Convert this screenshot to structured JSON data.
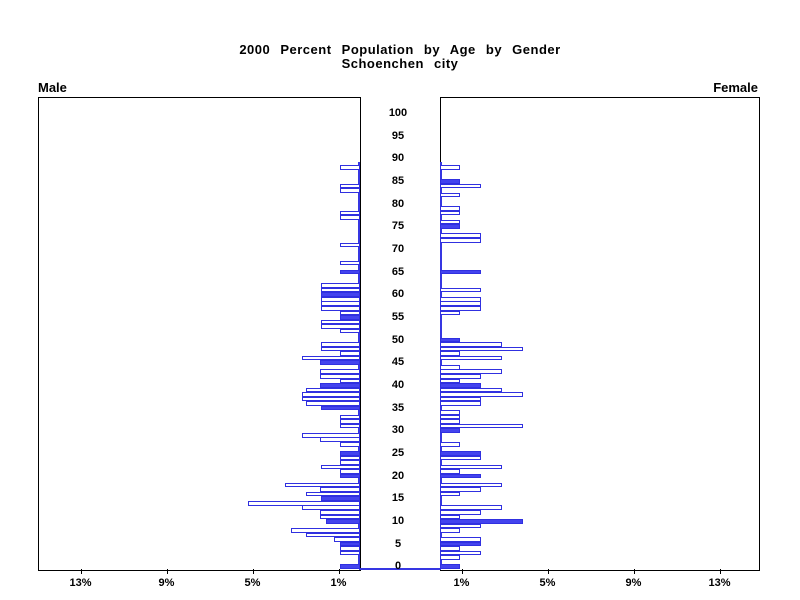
{
  "title": {
    "line1": "2000 Percent Population by Age by Gender",
    "line2": "Schoenchen city"
  },
  "panel_labels": {
    "male": "Male",
    "female": "Female"
  },
  "colors": {
    "bar_blue": "#4343ee",
    "bar_outline": "#3030e0",
    "axis": "#000000"
  },
  "chart_data": {
    "type": "bar",
    "subtype": "population-pyramid",
    "title": "2000 Percent Population by Age by Gender",
    "subtitle": "Schoenchen city",
    "age_axis": {
      "min": 0,
      "max": 100,
      "tick_step": 5
    },
    "pct_axis": {
      "ticks_pct": [
        1,
        5,
        9,
        13
      ],
      "tick_labels": [
        "1%",
        "5%",
        "9%",
        "13%"
      ],
      "max_pct": 15
    },
    "legend_note": "solid bars mark ages that are multiples of 5",
    "series": [
      {
        "name": "Male",
        "side": "left",
        "bars": [
          {
            "age": 0,
            "pct": 0.95,
            "filled": true
          },
          {
            "age": 3,
            "pct": 0.95,
            "filled": false
          },
          {
            "age": 4,
            "pct": 0.95,
            "filled": false
          },
          {
            "age": 5,
            "pct": 0.95,
            "filled": true
          },
          {
            "age": 6,
            "pct": 1.2,
            "filled": false
          },
          {
            "age": 7,
            "pct": 2.5,
            "filled": false
          },
          {
            "age": 8,
            "pct": 3.2,
            "filled": false
          },
          {
            "age": 10,
            "pct": 1.6,
            "filled": true
          },
          {
            "age": 11,
            "pct": 1.85,
            "filled": false
          },
          {
            "age": 12,
            "pct": 1.85,
            "filled": false
          },
          {
            "age": 13,
            "pct": 2.7,
            "filled": false
          },
          {
            "age": 14,
            "pct": 5.2,
            "filled": false
          },
          {
            "age": 15,
            "pct": 1.8,
            "filled": true
          },
          {
            "age": 16,
            "pct": 2.5,
            "filled": false
          },
          {
            "age": 17,
            "pct": 1.85,
            "filled": false
          },
          {
            "age": 18,
            "pct": 3.5,
            "filled": false
          },
          {
            "age": 20,
            "pct": 0.95,
            "filled": true
          },
          {
            "age": 21,
            "pct": 0.95,
            "filled": false
          },
          {
            "age": 22,
            "pct": 1.8,
            "filled": false
          },
          {
            "age": 23,
            "pct": 0.95,
            "filled": false
          },
          {
            "age": 24,
            "pct": 0.95,
            "filled": false
          },
          {
            "age": 25,
            "pct": 0.95,
            "filled": true
          },
          {
            "age": 27,
            "pct": 0.95,
            "filled": false
          },
          {
            "age": 28,
            "pct": 1.85,
            "filled": false
          },
          {
            "age": 29,
            "pct": 2.7,
            "filled": false
          },
          {
            "age": 31,
            "pct": 0.95,
            "filled": false
          },
          {
            "age": 32,
            "pct": 0.95,
            "filled": false
          },
          {
            "age": 33,
            "pct": 0.95,
            "filled": false
          },
          {
            "age": 35,
            "pct": 1.8,
            "filled": true
          },
          {
            "age": 36,
            "pct": 2.5,
            "filled": false
          },
          {
            "age": 37,
            "pct": 2.7,
            "filled": false
          },
          {
            "age": 38,
            "pct": 2.7,
            "filled": false
          },
          {
            "age": 39,
            "pct": 2.5,
            "filled": false
          },
          {
            "age": 40,
            "pct": 1.85,
            "filled": true
          },
          {
            "age": 41,
            "pct": 0.95,
            "filled": false
          },
          {
            "age": 42,
            "pct": 1.85,
            "filled": false
          },
          {
            "age": 43,
            "pct": 1.85,
            "filled": false
          },
          {
            "age": 45,
            "pct": 1.85,
            "filled": true
          },
          {
            "age": 46,
            "pct": 2.7,
            "filled": false
          },
          {
            "age": 47,
            "pct": 0.95,
            "filled": false
          },
          {
            "age": 48,
            "pct": 1.8,
            "filled": false
          },
          {
            "age": 49,
            "pct": 1.8,
            "filled": false
          },
          {
            "age": 52,
            "pct": 0.95,
            "filled": false
          },
          {
            "age": 53,
            "pct": 1.8,
            "filled": false
          },
          {
            "age": 54,
            "pct": 1.8,
            "filled": false
          },
          {
            "age": 55,
            "pct": 0.95,
            "filled": true
          },
          {
            "age": 56,
            "pct": 0.95,
            "filled": false
          },
          {
            "age": 57,
            "pct": 1.8,
            "filled": false
          },
          {
            "age": 58,
            "pct": 1.8,
            "filled": false
          },
          {
            "age": 59,
            "pct": 1.8,
            "filled": false
          },
          {
            "age": 60,
            "pct": 1.8,
            "filled": true
          },
          {
            "age": 61,
            "pct": 1.8,
            "filled": false
          },
          {
            "age": 62,
            "pct": 1.8,
            "filled": false
          },
          {
            "age": 65,
            "pct": 0.95,
            "filled": true
          },
          {
            "age": 67,
            "pct": 0.95,
            "filled": false
          },
          {
            "age": 71,
            "pct": 0.95,
            "filled": false
          },
          {
            "age": 77,
            "pct": 0.95,
            "filled": false
          },
          {
            "age": 78,
            "pct": 0.95,
            "filled": false
          },
          {
            "age": 83,
            "pct": 0.95,
            "filled": false
          },
          {
            "age": 84,
            "pct": 0.95,
            "filled": false
          },
          {
            "age": 88,
            "pct": 0.95,
            "filled": false
          }
        ]
      },
      {
        "name": "Female",
        "side": "right",
        "bars": [
          {
            "age": 0,
            "pct": 0.95,
            "filled": true
          },
          {
            "age": 2,
            "pct": 0.95,
            "filled": false
          },
          {
            "age": 3,
            "pct": 1.9,
            "filled": false
          },
          {
            "age": 4,
            "pct": 0.95,
            "filled": false
          },
          {
            "age": 5,
            "pct": 1.9,
            "filled": true
          },
          {
            "age": 6,
            "pct": 1.9,
            "filled": false
          },
          {
            "age": 8,
            "pct": 0.95,
            "filled": false
          },
          {
            "age": 9,
            "pct": 1.9,
            "filled": false
          },
          {
            "age": 10,
            "pct": 3.85,
            "filled": true
          },
          {
            "age": 11,
            "pct": 0.95,
            "filled": false
          },
          {
            "age": 12,
            "pct": 1.9,
            "filled": false
          },
          {
            "age": 13,
            "pct": 2.9,
            "filled": false
          },
          {
            "age": 16,
            "pct": 0.95,
            "filled": false
          },
          {
            "age": 17,
            "pct": 1.9,
            "filled": false
          },
          {
            "age": 18,
            "pct": 2.9,
            "filled": false
          },
          {
            "age": 20,
            "pct": 1.9,
            "filled": true
          },
          {
            "age": 21,
            "pct": 0.95,
            "filled": false
          },
          {
            "age": 22,
            "pct": 2.9,
            "filled": false
          },
          {
            "age": 24,
            "pct": 1.9,
            "filled": false
          },
          {
            "age": 25,
            "pct": 1.9,
            "filled": true
          },
          {
            "age": 27,
            "pct": 0.95,
            "filled": false
          },
          {
            "age": 30,
            "pct": 0.95,
            "filled": true
          },
          {
            "age": 31,
            "pct": 3.85,
            "filled": false
          },
          {
            "age": 32,
            "pct": 0.95,
            "filled": false
          },
          {
            "age": 33,
            "pct": 0.95,
            "filled": false
          },
          {
            "age": 34,
            "pct": 0.95,
            "filled": false
          },
          {
            "age": 36,
            "pct": 1.9,
            "filled": false
          },
          {
            "age": 37,
            "pct": 1.9,
            "filled": false
          },
          {
            "age": 38,
            "pct": 3.85,
            "filled": false
          },
          {
            "age": 39,
            "pct": 2.9,
            "filled": false
          },
          {
            "age": 40,
            "pct": 1.9,
            "filled": true
          },
          {
            "age": 41,
            "pct": 0.95,
            "filled": false
          },
          {
            "age": 42,
            "pct": 1.9,
            "filled": false
          },
          {
            "age": 43,
            "pct": 2.9,
            "filled": false
          },
          {
            "age": 44,
            "pct": 0.95,
            "filled": false
          },
          {
            "age": 46,
            "pct": 2.9,
            "filled": false
          },
          {
            "age": 47,
            "pct": 0.95,
            "filled": false
          },
          {
            "age": 48,
            "pct": 3.85,
            "filled": false
          },
          {
            "age": 49,
            "pct": 2.9,
            "filled": false
          },
          {
            "age": 50,
            "pct": 0.95,
            "filled": true
          },
          {
            "age": 56,
            "pct": 0.95,
            "filled": false
          },
          {
            "age": 57,
            "pct": 1.9,
            "filled": false
          },
          {
            "age": 58,
            "pct": 1.9,
            "filled": false
          },
          {
            "age": 59,
            "pct": 1.9,
            "filled": false
          },
          {
            "age": 61,
            "pct": 1.9,
            "filled": false
          },
          {
            "age": 65,
            "pct": 1.9,
            "filled": true
          },
          {
            "age": 72,
            "pct": 1.9,
            "filled": false
          },
          {
            "age": 73,
            "pct": 1.9,
            "filled": false
          },
          {
            "age": 75,
            "pct": 0.95,
            "filled": true
          },
          {
            "age": 76,
            "pct": 0.95,
            "filled": false
          },
          {
            "age": 78,
            "pct": 0.95,
            "filled": false
          },
          {
            "age": 79,
            "pct": 0.95,
            "filled": false
          },
          {
            "age": 82,
            "pct": 0.95,
            "filled": false
          },
          {
            "age": 84,
            "pct": 1.9,
            "filled": false
          },
          {
            "age": 85,
            "pct": 0.95,
            "filled": true
          },
          {
            "age": 88,
            "pct": 0.95,
            "filled": false
          }
        ]
      }
    ]
  }
}
